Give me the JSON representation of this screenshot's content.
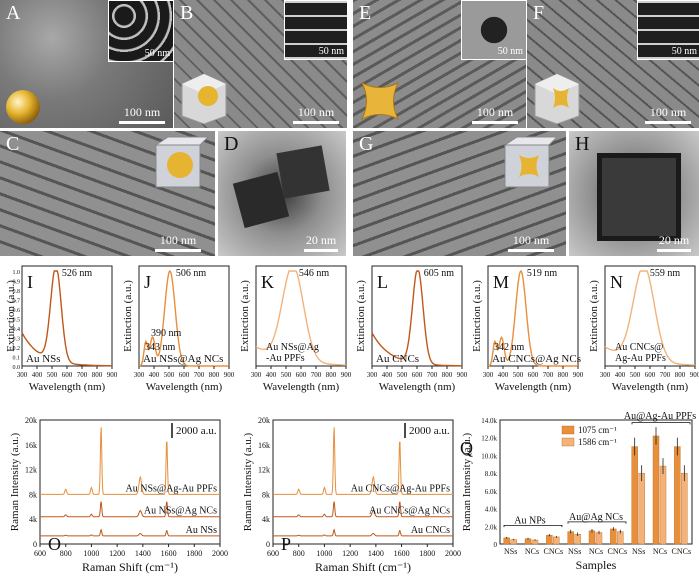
{
  "panels": {
    "A": {
      "letter": "A",
      "scale": "100 nm",
      "inset_scale": "50 nm"
    },
    "B": {
      "letter": "B",
      "scale": "100 nm",
      "inset_scale": "50 nm"
    },
    "E": {
      "letter": "E",
      "scale": "100 nm",
      "inset_scale": "50 nm"
    },
    "F": {
      "letter": "F",
      "scale": "100 nm",
      "inset_scale": "50 nm"
    },
    "C": {
      "letter": "C",
      "scale": "100 nm"
    },
    "D": {
      "letter": "D",
      "scale": "20 nm"
    },
    "G": {
      "letter": "G",
      "scale": "100 nm"
    },
    "H": {
      "letter": "H",
      "scale": "20 nm"
    }
  },
  "colors": {
    "dark_orange": "#c0581a",
    "mid_orange": "#e88f3c",
    "light_orange": "#f3b27a",
    "gold": "#e8b53a"
  },
  "chart_data": [
    {
      "letter": "I",
      "type": "line",
      "peak": "526 nm",
      "sample": "Au NSs",
      "xlabel": "Wavelength (nm)",
      "ylabel": "Extinction (a.u.)",
      "xlim": [
        300,
        900
      ],
      "ylim": [
        0,
        1.05
      ],
      "xticks": [
        300,
        400,
        500,
        600,
        700,
        800,
        900
      ],
      "yticks": [
        0,
        0.1,
        0.2,
        0.3,
        0.4,
        0.5,
        0.6,
        0.7,
        0.8,
        0.9,
        1.0
      ]
    },
    {
      "letter": "J",
      "type": "line",
      "peak": "506 nm",
      "peaks_extra": [
        "390 nm",
        "343 nm"
      ],
      "sample": "Au NSs@Ag NCs",
      "xlabel": "Wavelength (nm)",
      "ylabel": "Extinction (a.u.)",
      "xlim": [
        300,
        900
      ]
    },
    {
      "letter": "K",
      "type": "line",
      "peak": "546 nm",
      "sample_line1": "Au NSs@Ag",
      "sample_line2": "-Au PPFs",
      "xlabel": "Wavelength (nm)",
      "ylabel": "Extinction (a.u.)",
      "xlim": [
        300,
        900
      ]
    },
    {
      "letter": "L",
      "type": "line",
      "peak": "605 nm",
      "sample": "Au CNCs",
      "xlabel": "Wavelength (nm)",
      "ylabel": "Extinction (a.u.)",
      "xlim": [
        300,
        900
      ]
    },
    {
      "letter": "M",
      "type": "line",
      "peak": "519 nm",
      "peaks_extra": [
        "342 nm"
      ],
      "sample": "Au CNCs@Ag NCs",
      "xlabel": "Wavelength (nm)",
      "ylabel": "Extinction (a.u.)",
      "xlim": [
        300,
        900
      ]
    },
    {
      "letter": "N",
      "type": "line",
      "peak": "559 nm",
      "sample_line1": "Au CNCs@",
      "sample_line2": "Ag-Au PPFs",
      "xlabel": "Wavelength (nm)",
      "ylabel": "Extinction (a.u.)",
      "xlim": [
        300,
        900
      ]
    },
    {
      "letter": "O",
      "type": "line",
      "xlabel": "Raman Shift (cm⁻¹)",
      "ylabel": "Raman Intensity (a.u.)",
      "xlim": [
        600,
        2000
      ],
      "ylim": [
        0,
        20000
      ],
      "xticks": [
        600,
        800,
        1000,
        1200,
        1400,
        1600,
        1800,
        2000
      ],
      "yticks": [
        "0",
        "4k",
        "8k",
        "12k",
        "16k",
        "20k"
      ],
      "scalebar": "2000 a.u.",
      "series": [
        "Au NSs@Ag-Au PPFs",
        "Au NSs@Ag NCs",
        "Au NSs"
      ]
    },
    {
      "letter": "P",
      "type": "line",
      "xlabel": "Raman Shift (cm⁻¹)",
      "ylabel": "Raman Intensity (a.u.)",
      "xlim": [
        600,
        2000
      ],
      "ylim": [
        0,
        20000
      ],
      "xticks": [
        600,
        800,
        1000,
        1200,
        1400,
        1600,
        1800,
        2000
      ],
      "yticks": [
        "0",
        "4k",
        "8k",
        "12k",
        "16k",
        "20k"
      ],
      "scalebar": "2000 a.u.",
      "series": [
        "Au CNCs@Ag-Au PPFs",
        "Au CNCs@Ag NCs",
        "Au CNCs"
      ]
    },
    {
      "letter": "Q",
      "type": "bar",
      "xlabel": "Samples",
      "ylabel": "Raman Intensity (a.u.)",
      "ylim": [
        0,
        14000
      ],
      "yticks": [
        "0",
        "2.0k",
        "4.0k",
        "6.0k",
        "8.0k",
        "10.0k",
        "12.0k",
        "14.0k"
      ],
      "categories": [
        "NSs",
        "NCs",
        "CNCs",
        "NSs",
        "NCs",
        "CNCs",
        "NSs",
        "NCs",
        "CNCs"
      ],
      "groups": [
        "Au NPs",
        "Au@Ag NCs",
        "Au@Ag-Au PPFs"
      ],
      "series": [
        {
          "name": "1075 cm⁻¹",
          "values": [
            700,
            600,
            1000,
            1400,
            1500,
            1700,
            11000,
            12200,
            11000
          ],
          "errors": [
            100,
            100,
            120,
            200,
            200,
            200,
            1000,
            1000,
            1000
          ]
        },
        {
          "name": "1586 cm⁻¹",
          "values": [
            500,
            450,
            800,
            1100,
            1300,
            1400,
            8000,
            8800,
            8000
          ],
          "errors": [
            80,
            80,
            100,
            200,
            200,
            200,
            900,
            900,
            900
          ]
        }
      ]
    }
  ]
}
